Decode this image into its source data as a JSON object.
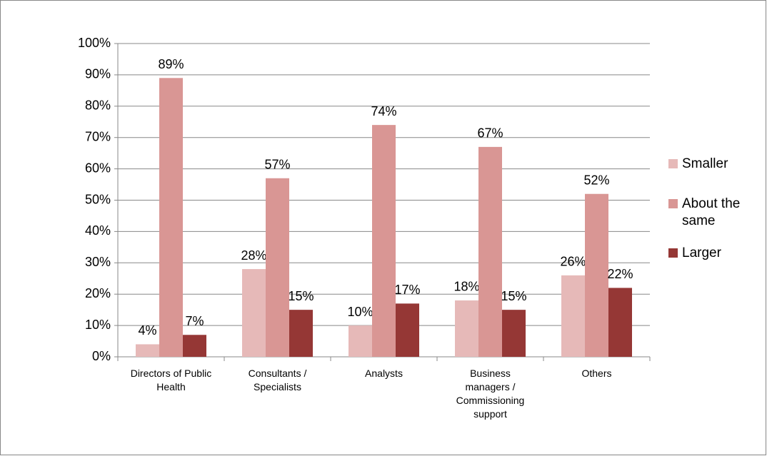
{
  "chart_data": {
    "type": "bar",
    "categories": [
      "Directors of Public Health",
      "Consultants / Specialists",
      "Analysts",
      "Business managers / Commissioning support",
      "Others"
    ],
    "series": [
      {
        "name": "Smaller",
        "color": "#e6b9b8",
        "values": [
          4,
          28,
          10,
          18,
          26
        ],
        "value_labels": [
          "4%",
          "28%",
          "10%",
          "18%",
          "26%"
        ]
      },
      {
        "name": "About the same",
        "color": "#d99694",
        "values": [
          89,
          57,
          74,
          67,
          52
        ],
        "value_labels": [
          "89%",
          "57%",
          "74%",
          "67%",
          "52%"
        ]
      },
      {
        "name": "Larger",
        "color": "#953735",
        "values": [
          7,
          15,
          17,
          15,
          22
        ],
        "value_labels": [
          "7%",
          "15%",
          "17%",
          "15%",
          "22%"
        ]
      }
    ],
    "ylim": [
      0,
      100
    ],
    "yticks": [
      {
        "value": 0,
        "label": "0%"
      },
      {
        "value": 10,
        "label": "10%"
      },
      {
        "value": 20,
        "label": "20%"
      },
      {
        "value": 30,
        "label": "30%"
      },
      {
        "value": 40,
        "label": "40%"
      },
      {
        "value": 50,
        "label": "50%"
      },
      {
        "value": 60,
        "label": "60%"
      },
      {
        "value": 70,
        "label": "70%"
      },
      {
        "value": 80,
        "label": "80%"
      },
      {
        "value": 90,
        "label": "90%"
      },
      {
        "value": 100,
        "label": "100%"
      }
    ],
    "grid": true,
    "legend": "right"
  }
}
